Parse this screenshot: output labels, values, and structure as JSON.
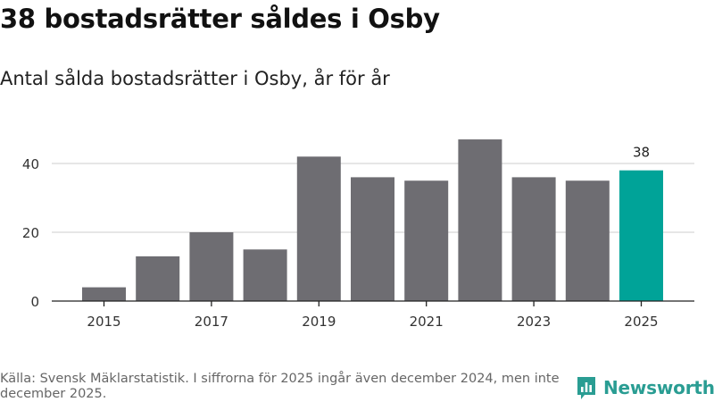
{
  "header": {
    "title": "38 bostadsrätter såldes i Osby",
    "subtitle": "Antal sålda bostadsrätter i Osby, år för år"
  },
  "chart_data": {
    "type": "bar",
    "title": "38 bostadsrätter såldes i Osby",
    "subtitle": "Antal sålda bostadsrätter i Osby, år för år",
    "categories": [
      "2015",
      "2016",
      "2017",
      "2018",
      "2019",
      "2020",
      "2021",
      "2022",
      "2023",
      "2024",
      "2025"
    ],
    "values": [
      4,
      13,
      20,
      15,
      42,
      36,
      35,
      47,
      36,
      35,
      38
    ],
    "x_tick_labels": [
      "2015",
      "2017",
      "2019",
      "2021",
      "2023",
      "2025"
    ],
    "y_ticks": [
      0,
      20,
      40
    ],
    "ylim": [
      0,
      50
    ],
    "xlabel": "",
    "ylabel": "",
    "grid": "horizontal",
    "highlight_category": "2025",
    "highlight_label": "38",
    "colors": {
      "bar": "#6e6d72",
      "highlight": "#00a398",
      "grid": "#dddddd",
      "axis": "#222222",
      "tick_text": "#333333"
    }
  },
  "footer": {
    "source": "Källa: Svensk Mäklarstatistik. I siffrorna för 2025 ingår även december 2024, men inte december 2025."
  },
  "logo": {
    "text": "Newsworthy",
    "icon": "newsworthy-bar-chart-icon",
    "color": "#2a9d93"
  }
}
